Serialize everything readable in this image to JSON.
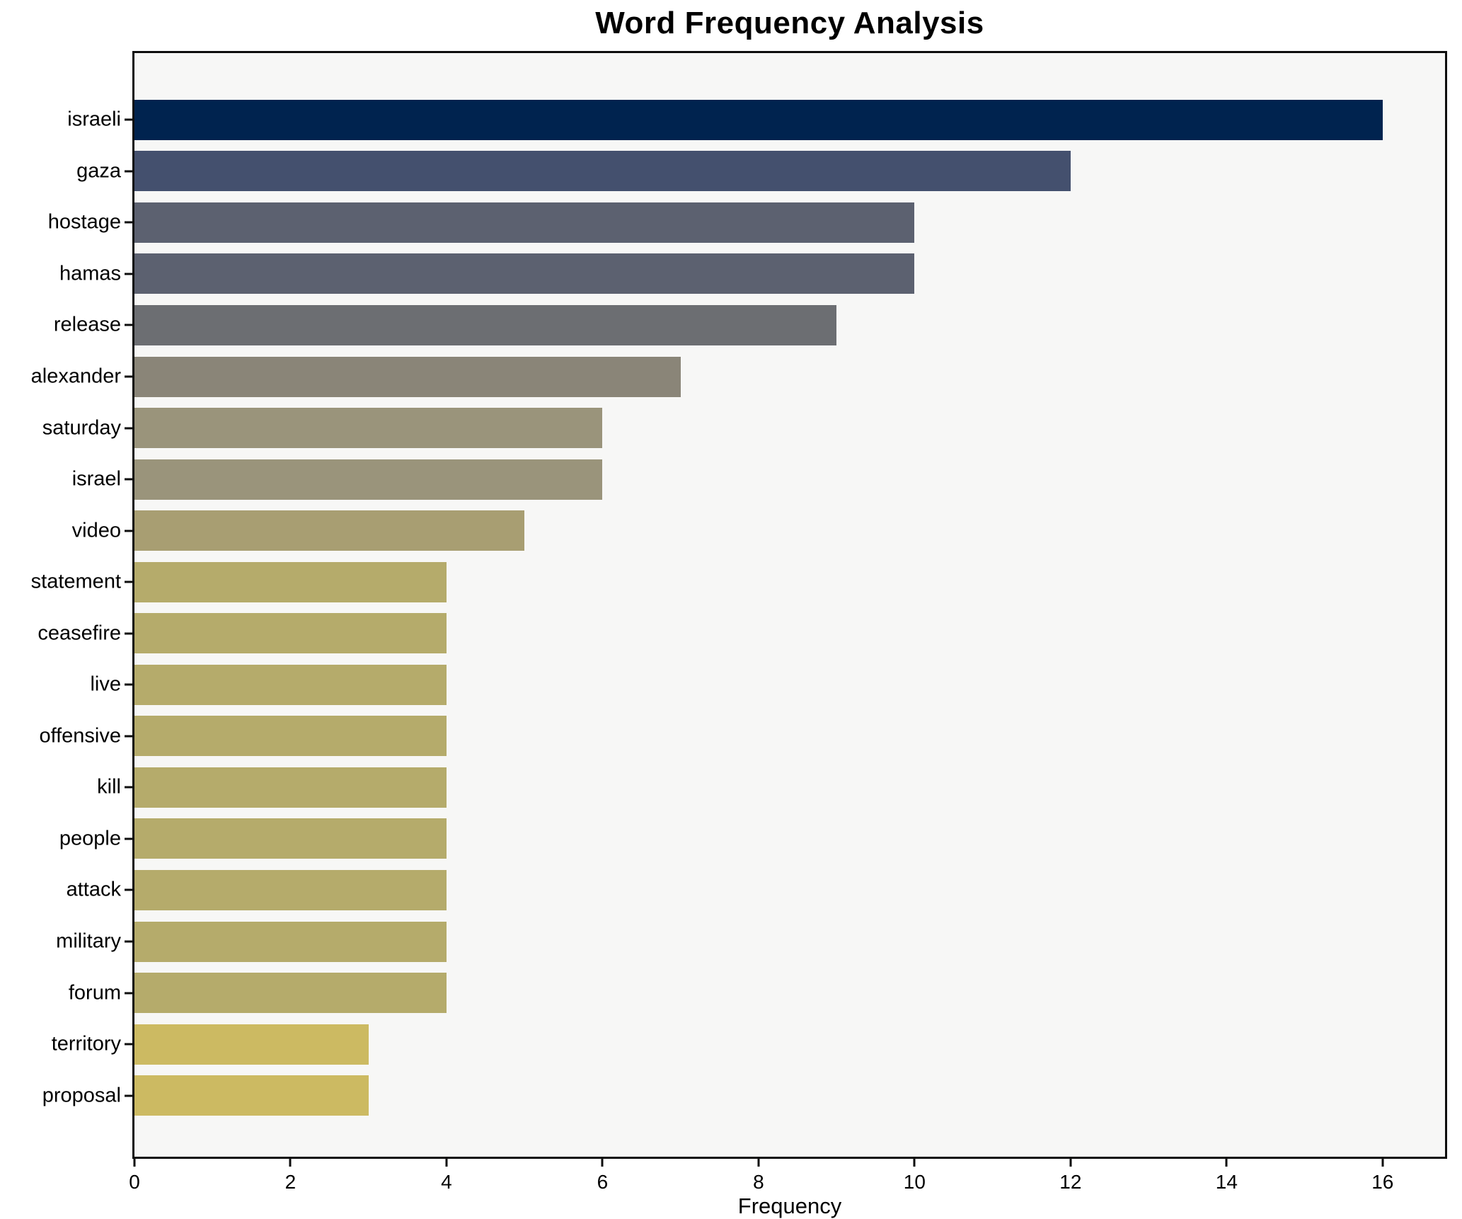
{
  "title": "Word Frequency Analysis",
  "colors": {
    "figure_bg": "#ffffff",
    "plot_bg": "#f7f7f6",
    "spine": "#0e0e0e",
    "text": "#000000"
  },
  "chart_data": {
    "type": "bar",
    "orientation": "horizontal",
    "title": "Word Frequency Analysis",
    "xlabel": "Frequency",
    "ylabel": "",
    "categories": [
      "israeli",
      "gaza",
      "hostage",
      "hamas",
      "release",
      "alexander",
      "saturday",
      "israel",
      "video",
      "statement",
      "ceasefire",
      "live",
      "offensive",
      "kill",
      "people",
      "attack",
      "military",
      "forum",
      "territory",
      "proposal"
    ],
    "values": [
      16,
      12,
      10,
      10,
      9,
      7,
      6,
      6,
      5,
      4,
      4,
      4,
      4,
      4,
      4,
      4,
      4,
      4,
      3,
      3
    ],
    "bar_colors": [
      "#00234f",
      "#44506e",
      "#5c6170",
      "#5c6170",
      "#6c6e72",
      "#8a8578",
      "#9a947b",
      "#9a947b",
      "#a89e72",
      "#b5ab6b",
      "#b5ab6b",
      "#b5ab6b",
      "#b5ab6b",
      "#b5ab6b",
      "#b5ab6b",
      "#b5ab6b",
      "#b5ab6b",
      "#b5ab6b",
      "#ccba62",
      "#ccba62"
    ],
    "xticks": [
      0,
      2,
      4,
      6,
      8,
      10,
      12,
      14,
      16
    ],
    "xlim": [
      0,
      16.8
    ],
    "grid": false,
    "legend": false,
    "colormap": "cividis"
  }
}
